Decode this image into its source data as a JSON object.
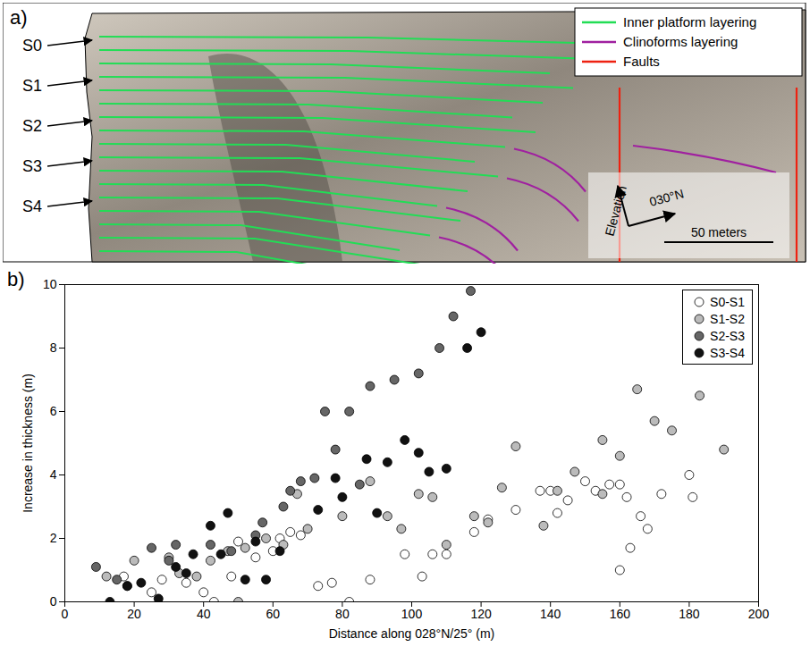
{
  "photo_panel": {
    "panel_label": "a)",
    "surface_labels": [
      "S0",
      "S1",
      "S2",
      "S3",
      "S4"
    ],
    "legend": [
      {
        "name": "Inner platform layering",
        "color": "#22dd55"
      },
      {
        "name": "Clinoforms layering",
        "color": "#a020a0"
      },
      {
        "name": "Faults",
        "color": "#ee2211"
      }
    ],
    "compass": {
      "up": "Elevation",
      "right": "030°N"
    },
    "scale_bar": "50 meters"
  },
  "chart_data": {
    "type": "scatter",
    "panel_label": "b)",
    "x_label": "Distance along 028°N/25° (m)",
    "y_label": "Increase in thickness (m)",
    "xlim": [
      0,
      200
    ],
    "xticks": [
      0,
      20,
      40,
      60,
      80,
      100,
      120,
      140,
      160,
      180,
      200
    ],
    "ylim": [
      0,
      10
    ],
    "yticks": [
      0,
      2,
      4,
      6,
      8,
      10
    ],
    "legend": "top-right",
    "grid": false,
    "marker": "circle",
    "series": [
      {
        "name": "S0-S1",
        "color": "#ffffff",
        "x": [
          17,
          25,
          28,
          35,
          40,
          43,
          48,
          50,
          55,
          60,
          62,
          65,
          68,
          73,
          77,
          82,
          88,
          98,
          103,
          106,
          110,
          118,
          122,
          130,
          137,
          140,
          142,
          145,
          150,
          153,
          157,
          160,
          160,
          162,
          163,
          166,
          168,
          172,
          180,
          181
        ],
        "values": [
          0.8,
          0.3,
          0.7,
          0.6,
          0.3,
          0,
          0.8,
          1.9,
          1.4,
          1.6,
          2.0,
          2.2,
          2.1,
          0.5,
          0.6,
          0,
          0.7,
          1.5,
          0.8,
          1.5,
          1.5,
          2.2,
          2.6,
          2.9,
          3.5,
          3.5,
          2.8,
          3.2,
          3.8,
          3.5,
          3.7,
          3.7,
          1.0,
          3.3,
          1.7,
          2.7,
          2.3,
          3.4,
          4.0,
          3.3
        ]
      },
      {
        "name": "S1-S2",
        "color": "#bbbbbb",
        "x": [
          12,
          18,
          20,
          30,
          33,
          38,
          42,
          47,
          50,
          52,
          58,
          63,
          67,
          70,
          80,
          88,
          93,
          97,
          102,
          106,
          110,
          118,
          122,
          126,
          130,
          138,
          142,
          147,
          155,
          155,
          160,
          165,
          170,
          175,
          183,
          190
        ],
        "values": [
          0.8,
          0.5,
          1.3,
          1.4,
          0.9,
          0.8,
          1.3,
          1.6,
          0,
          1.7,
          2.0,
          1.8,
          3.4,
          2.3,
          2.7,
          3.8,
          2.7,
          2.3,
          3.4,
          3.3,
          1.8,
          2.7,
          2.5,
          3.6,
          4.9,
          2.4,
          3.5,
          4.1,
          3.4,
          5.1,
          4.6,
          6.7,
          5.7,
          5.4,
          6.5,
          4.8
        ]
      },
      {
        "name": "S2-S3",
        "color": "#666666",
        "x": [
          9,
          15,
          25,
          30,
          32,
          42,
          48,
          55,
          57,
          63,
          65,
          68,
          72,
          75,
          78,
          82,
          85,
          88,
          95,
          102,
          108,
          112,
          117
        ],
        "values": [
          1.1,
          0.7,
          1.7,
          1.3,
          1.8,
          1.8,
          1.6,
          2.1,
          2.5,
          3.0,
          3.5,
          3.8,
          3.9,
          6.0,
          4.8,
          6.0,
          3.7,
          6.8,
          7.0,
          7.2,
          8.0,
          9.0,
          9.8
        ]
      },
      {
        "name": "S3-S4",
        "color": "#111111",
        "x": [
          13,
          18,
          22,
          27,
          32,
          35,
          37,
          42,
          45,
          47,
          52,
          55,
          58,
          62,
          73,
          78,
          80,
          87,
          90,
          93,
          98,
          102,
          105,
          110,
          116,
          120
        ],
        "values": [
          0,
          0.5,
          0.6,
          0.1,
          1.1,
          0.9,
          1.5,
          2.4,
          1.5,
          2.8,
          0.7,
          1.9,
          0.7,
          1.6,
          2.9,
          3.9,
          3.3,
          4.5,
          2.8,
          4.4,
          5.1,
          4.7,
          4.1,
          4.2,
          8.0,
          8.5
        ]
      }
    ]
  }
}
